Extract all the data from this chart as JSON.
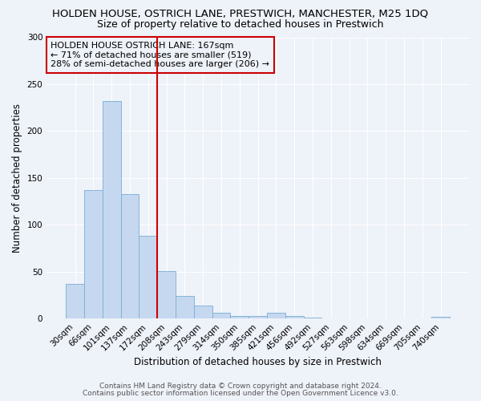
{
  "title": "HOLDEN HOUSE, OSTRICH LANE, PRESTWICH, MANCHESTER, M25 1DQ",
  "subtitle": "Size of property relative to detached houses in Prestwich",
  "xlabel": "Distribution of detached houses by size in Prestwich",
  "ylabel": "Number of detached properties",
  "bar_labels": [
    "30sqm",
    "66sqm",
    "101sqm",
    "137sqm",
    "172sqm",
    "208sqm",
    "243sqm",
    "279sqm",
    "314sqm",
    "350sqm",
    "385sqm",
    "421sqm",
    "456sqm",
    "492sqm",
    "527sqm",
    "563sqm",
    "598sqm",
    "634sqm",
    "669sqm",
    "705sqm",
    "740sqm"
  ],
  "bar_values": [
    37,
    137,
    232,
    133,
    88,
    51,
    24,
    14,
    6,
    3,
    3,
    6,
    3,
    1,
    0,
    0,
    0,
    0,
    0,
    0,
    2
  ],
  "bar_color": "#c5d8f0",
  "bar_edgecolor": "#7aadd4",
  "bar_width": 1.0,
  "vline_x": 4.5,
  "vline_color": "#cc0000",
  "ylim": [
    0,
    300
  ],
  "yticks": [
    0,
    50,
    100,
    150,
    200,
    250,
    300
  ],
  "annotation_text": "HOLDEN HOUSE OSTRICH LANE: 167sqm\n← 71% of detached houses are smaller (519)\n28% of semi-detached houses are larger (206) →",
  "annotation_box_edgecolor": "#cc0000",
  "footnote1": "Contains HM Land Registry data © Crown copyright and database right 2024.",
  "footnote2": "Contains public sector information licensed under the Open Government Licence v3.0.",
  "bg_color": "#eef2f9",
  "grid_color": "#ffffff",
  "title_fontsize": 9.5,
  "subtitle_fontsize": 9,
  "label_fontsize": 8.5,
  "tick_fontsize": 7.5,
  "annotation_fontsize": 8,
  "footnote_fontsize": 6.5
}
